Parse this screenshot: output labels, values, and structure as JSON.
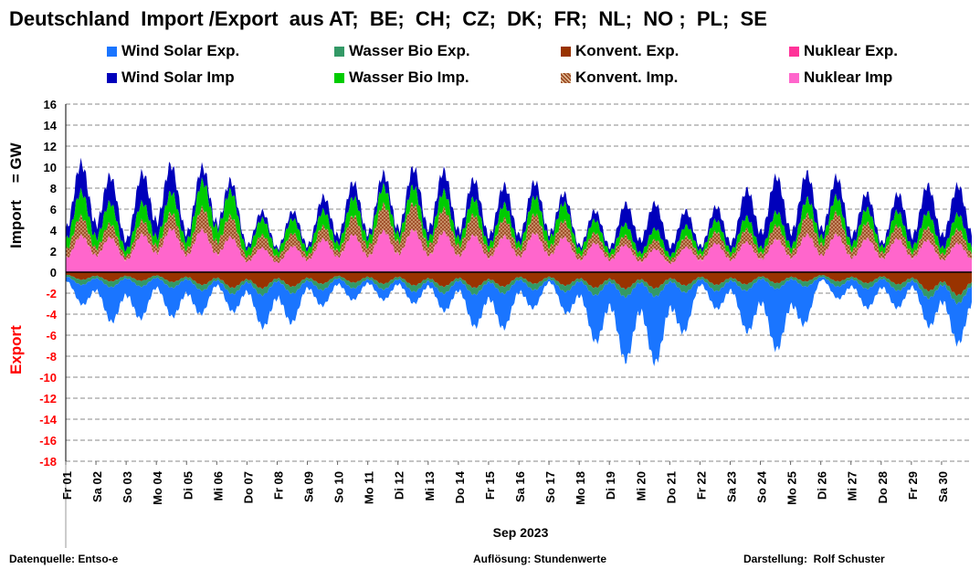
{
  "chart_data": {
    "type": "area",
    "title": "Deutschland  Import /Export  aus AT;  BE;  CH;  CZ;  DK;  FR;  NL;  NO ;  PL;  SE",
    "ylabel_import": "Import    = GW",
    "ylabel_export": "Export",
    "xlabel": "Sep 2023",
    "ylim": [
      -18,
      16
    ],
    "yticks": [
      16,
      14,
      12,
      10,
      8,
      6,
      4,
      2,
      0,
      -2,
      -4,
      -6,
      -8,
      -10,
      -12,
      -14,
      -16,
      -18
    ],
    "grid": true,
    "legend_position": "top",
    "categories": [
      "Fr 01",
      "Sa 02",
      "So 03",
      "Mo 04",
      "Di 05",
      "Mi 06",
      "Do 07",
      "Fr 08",
      "Sa 09",
      "So 10",
      "Mo 11",
      "Di 12",
      "Mi 13",
      "Do 14",
      "Fr 15",
      "Sa 16",
      "So 17",
      "Mo 18",
      "Di 19",
      "Mi 20",
      "Do 21",
      "Fr 22",
      "Sa 23",
      "So 24",
      "Mo 25",
      "Di 26",
      "Mi 27",
      "Do 28",
      "Fr 29",
      "Sa 30"
    ],
    "series_import": [
      {
        "name": "Nuklear Imp",
        "color": "#ff66cc",
        "values": [
          2.8,
          3.5,
          2.5,
          4.0,
          3.5,
          3.8,
          2.2,
          2.0,
          2.5,
          3.2,
          3.3,
          3.8,
          3.5,
          3.4,
          3.0,
          3.2,
          3.5,
          2.5,
          2.5,
          2.2,
          1.8,
          2.5,
          2.5,
          2.7,
          3.0,
          3.5,
          3.0,
          2.8,
          3.0,
          2.5
        ]
      },
      {
        "name": "Konvent. Imp.",
        "color": "#a0522d",
        "values": [
          1.8,
          1.5,
          0.8,
          1.5,
          1.2,
          2.5,
          1.0,
          1.2,
          1.0,
          1.2,
          2.0,
          2.5,
          2.0,
          2.0,
          1.5,
          1.5,
          1.8,
          1.0,
          0.8,
          0.8,
          0.8,
          1.0,
          1.0,
          1.2,
          1.2,
          2.2,
          1.5,
          1.2,
          1.0,
          1.2
        ]
      },
      {
        "name": "Wasser Bio Imp.",
        "color": "#00cc00",
        "values": [
          2.0,
          2.3,
          1.3,
          1.8,
          1.8,
          2.8,
          1.5,
          1.3,
          1.2,
          1.5,
          1.7,
          1.5,
          1.5,
          1.5,
          1.3,
          1.2,
          1.8,
          1.2,
          1.0,
          1.0,
          0.9,
          1.0,
          1.0,
          1.1,
          1.2,
          1.5,
          1.3,
          1.2,
          1.3,
          1.3
        ]
      },
      {
        "name": "Wind Solar Imp",
        "color": "#0000bb",
        "values": [
          2.2,
          2.7,
          1.9,
          3.2,
          1.5,
          1.0,
          0.8,
          0.5,
          0.8,
          1.6,
          1.0,
          1.2,
          2.0,
          1.6,
          1.7,
          1.6,
          1.0,
          0.7,
          0.9,
          2.6,
          1.8,
          0.8,
          1.5,
          3.2,
          2.9,
          1.6,
          1.8,
          0.8,
          2.2,
          2.5
        ]
      }
    ],
    "series_export": [
      {
        "name": "Konvent. Exp.",
        "color": "#993300",
        "values": [
          -0.5,
          -0.8,
          -0.8,
          -0.7,
          -1.0,
          -1.2,
          -1.5,
          -1.3,
          -1.2,
          -0.8,
          -1.0,
          -1.0,
          -1.3,
          -1.2,
          -1.5,
          -1.0,
          -1.0,
          -1.3,
          -1.4,
          -1.5,
          -1.3,
          -1.0,
          -1.2,
          -0.9,
          -1.0,
          -0.6,
          -1.0,
          -0.9,
          -1.2,
          -2.0
        ]
      },
      {
        "name": "Wasser Bio Exp.",
        "color": "#339966",
        "values": [
          -0.4,
          -0.5,
          -0.5,
          -0.5,
          -0.5,
          -0.5,
          -0.6,
          -0.6,
          -0.6,
          -0.5,
          -0.5,
          -0.5,
          -0.6,
          -0.6,
          -0.6,
          -0.6,
          -0.5,
          -0.6,
          -0.7,
          -0.7,
          -0.7,
          -0.5,
          -0.6,
          -0.5,
          -0.5,
          -0.4,
          -0.5,
          -0.5,
          -0.6,
          -0.7
        ]
      },
      {
        "name": "Wind Solar Exp.",
        "color": "#1a75ff",
        "values": [
          -0.8,
          -2.5,
          -3.5,
          -2.0,
          -3.0,
          -1.0,
          -2.0,
          -3.5,
          -1.5,
          -1.2,
          -0.8,
          -1.0,
          -1.0,
          -2.0,
          -3.5,
          -2.5,
          -0.5,
          -3.0,
          -5.0,
          -6.0,
          -5.5,
          -1.0,
          -2.0,
          -5.0,
          -5.5,
          -0.5,
          -1.5,
          -1.8,
          -1.2,
          -3.5
        ]
      },
      {
        "name": "Nuklear Exp.",
        "color": "#ff3399",
        "values": [
          0,
          0,
          0,
          0,
          0,
          0,
          0,
          0,
          0,
          0,
          0,
          0,
          0,
          0,
          0,
          0,
          0,
          0,
          0,
          0,
          0,
          0,
          0,
          0,
          0,
          0,
          0,
          0,
          0,
          0
        ]
      }
    ]
  },
  "legend": [
    {
      "label": "Wind Solar Exp.",
      "color": "#1a75ff"
    },
    {
      "label": "Wasser Bio Exp.",
      "color": "#339966"
    },
    {
      "label": "Konvent. Exp.",
      "color": "#993300"
    },
    {
      "label": "Nuklear Exp.",
      "color": "#ff3399"
    },
    {
      "label": "Wind Solar Imp",
      "color": "#0000bb"
    },
    {
      "label": "Wasser Bio Imp.",
      "color": "#00cc00"
    },
    {
      "label": "Konvent. Imp.",
      "color": "#a0522d"
    },
    {
      "label": "Nuklear Imp",
      "color": "#ff66cc"
    }
  ],
  "footer": {
    "source": "Datenquelle: Entso-e",
    "resolution": "Auflösung: Stundenwerte",
    "author": "Darstellung:  Rolf Schuster"
  },
  "colors": {
    "export_label": "#ff0000",
    "grid": "#888888"
  }
}
